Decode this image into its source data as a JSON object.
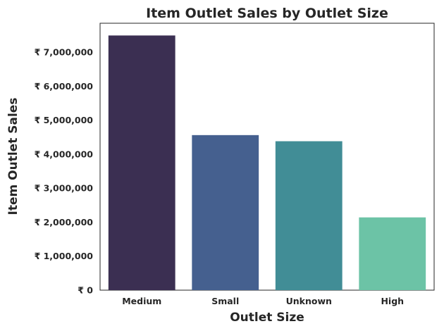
{
  "chart_data": {
    "type": "bar",
    "title": "Item Outlet Sales by Outlet Size",
    "xlabel": "Outlet Size",
    "ylabel": "Item Outlet Sales",
    "categories": [
      "Medium",
      "Small",
      "Unknown",
      "High"
    ],
    "values": [
      7490000,
      4560000,
      4380000,
      2140000
    ],
    "ylim": [
      0,
      7850000
    ],
    "yticks": [
      0,
      1000000,
      2000000,
      3000000,
      4000000,
      5000000,
      6000000,
      7000000
    ],
    "ytick_labels": [
      "₹ 0",
      "₹ 1,000,000",
      "₹ 2,000,000",
      "₹ 3,000,000",
      "₹ 4,000,000",
      "₹ 5,000,000",
      "₹ 6,000,000",
      "₹ 7,000,000"
    ],
    "colors": [
      "#3b2f52",
      "#45608f",
      "#418d96",
      "#6cc3a6"
    ],
    "grid": false,
    "legend": "none"
  }
}
